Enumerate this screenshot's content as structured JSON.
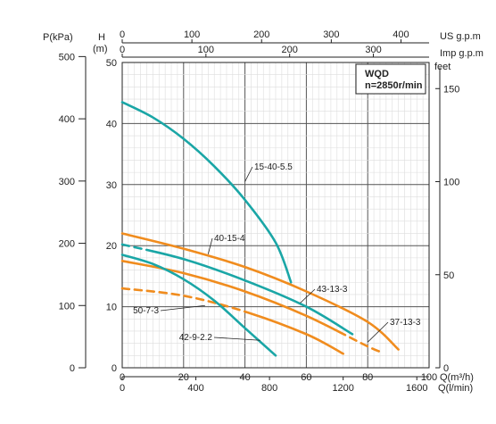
{
  "chart_data": {
    "type": "line",
    "model_box": {
      "title": "WQD",
      "speed": "n=2850r/min"
    },
    "axes": {
      "q_m3h": {
        "label": "Q(m³/h)",
        "range": [
          0,
          100
        ],
        "ticks": [
          "0",
          "20",
          "40",
          "60",
          "80",
          "100"
        ]
      },
      "q_lmin": {
        "label": "Q(l/min)",
        "ticks": [
          "0",
          "400",
          "800",
          "1200",
          "1600"
        ]
      },
      "us_gpm": {
        "label": "US g.p.m",
        "ticks": [
          "0",
          "100",
          "200",
          "300",
          "400"
        ]
      },
      "imp_gpm": {
        "label": "Imp g.p.m",
        "ticks": [
          "0",
          "100",
          "200",
          "300"
        ]
      },
      "head_m": {
        "label": "H",
        "unit": "(m)",
        "range": [
          0,
          50
        ],
        "ticks": [
          "0",
          "10",
          "20",
          "30",
          "40",
          "50"
        ]
      },
      "pressure_kpa": {
        "label": "P(kPa)",
        "ticks": [
          "0",
          "100",
          "200",
          "300",
          "400",
          "500"
        ]
      },
      "head_feet": {
        "label": "feet",
        "ticks": [
          "0",
          "50",
          "100",
          "150"
        ]
      }
    },
    "grid": true,
    "series": [
      {
        "name": "15-40-5.5",
        "color": "#1aa6a6",
        "x": [
          0,
          10,
          20,
          30,
          40,
          50,
          55
        ],
        "y": [
          43.5,
          41,
          37.5,
          33,
          27.5,
          20.5,
          14
        ]
      },
      {
        "name": "40-15-4",
        "color": "#f08c1e",
        "x": [
          0,
          20,
          40,
          60,
          80,
          90
        ],
        "y": [
          22,
          19.5,
          16.5,
          12.5,
          7.5,
          3
        ]
      },
      {
        "name": "43-13-3",
        "color": "#1aa6a6",
        "x": [
          0,
          20,
          40,
          60,
          75
        ],
        "y": [
          20.2,
          17.8,
          14.3,
          10,
          5.5
        ],
        "dashed_from_x": 10,
        "dashed_segment": [
          0,
          10
        ]
      },
      {
        "name": "37-13-3",
        "color": "#f08c1e",
        "x": [
          0,
          20,
          40,
          60,
          80,
          85
        ],
        "y": [
          17.5,
          15.5,
          12.5,
          8.5,
          3.5,
          2.5
        ],
        "dashed_segment": [
          70,
          85
        ]
      },
      {
        "name": "50-7-3",
        "color": "#f08c1e",
        "x": [
          0,
          20,
          40,
          60,
          72
        ],
        "y": [
          13,
          11.8,
          9.2,
          5.5,
          2.3
        ],
        "dashed_segment": [
          0,
          40
        ],
        "dashed_tail": [
          60,
          72
        ]
      },
      {
        "name": "42-9-2.2",
        "color": "#1aa6a6",
        "x": [
          0,
          10,
          20,
          30,
          40,
          50
        ],
        "y": [
          18.5,
          17,
          14.5,
          11,
          6.5,
          2
        ]
      }
    ]
  }
}
